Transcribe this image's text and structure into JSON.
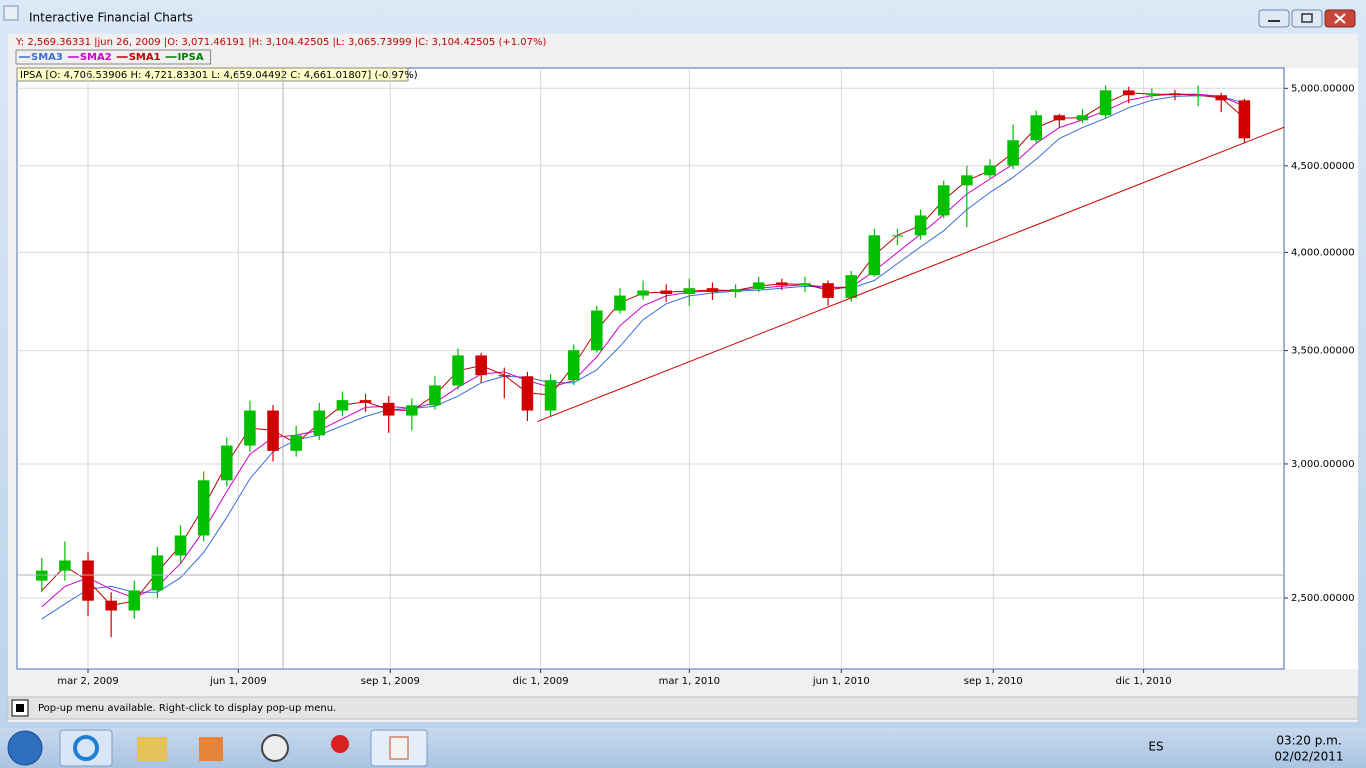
{
  "window": {
    "title": "Interactive Financial Charts"
  },
  "header": {
    "crosshair_info": "Y: 2,569.36331 |jun 26, 2009 |O: 3,071.46191 |H: 3,104.42505 |L: 3,065.73999 |C: 3,104.42505 (+1.07%)",
    "ohlc_info": "IPSA [O: 4,706.53906  H: 4,721.83301  L: 4,659.04492  C: 4,661.01807] (-0.97%)"
  },
  "chart_data": {
    "type": "candlestick",
    "name": "IPSA",
    "color": "#008000",
    "up_color": "#00c000",
    "down_color": "#d00000",
    "log_scale": true,
    "grid": true,
    "x": [
      "2009-02-02",
      "2009-02-16",
      "2009-03-02",
      "2009-03-16",
      "2009-03-30",
      "2009-04-13",
      "2009-04-27",
      "2009-05-11",
      "2009-05-25",
      "2009-06-08",
      "2009-06-22",
      "2009-07-06",
      "2009-07-20",
      "2009-08-03",
      "2009-08-17",
      "2009-08-31",
      "2009-09-14",
      "2009-09-28",
      "2009-10-12",
      "2009-10-26",
      "2009-11-09",
      "2009-11-23",
      "2009-12-07",
      "2009-12-21",
      "2010-01-04",
      "2010-01-18",
      "2010-02-01",
      "2010-02-15",
      "2010-03-01",
      "2010-03-15",
      "2010-03-29",
      "2010-04-12",
      "2010-04-26",
      "2010-05-10",
      "2010-05-24",
      "2010-06-07",
      "2010-06-21",
      "2010-07-05",
      "2010-07-19",
      "2010-08-02",
      "2010-08-16",
      "2010-08-30",
      "2010-09-13",
      "2010-09-27",
      "2010-10-11",
      "2010-10-25",
      "2010-11-08",
      "2010-11-22",
      "2010-12-06",
      "2010-12-20",
      "2011-01-03",
      "2011-01-17",
      "2011-01-31"
    ],
    "open": [
      2560,
      2595,
      2631,
      2491,
      2458,
      2526,
      2649,
      2722,
      2934,
      3076,
      3226,
      3054,
      3119,
      3226,
      3272,
      3260,
      3204,
      3249,
      3338,
      3477,
      3385,
      3380,
      3226,
      3362,
      3502,
      3696,
      3772,
      3798,
      3780,
      3810,
      3790,
      3805,
      3840,
      3825,
      3836,
      3760,
      3878,
      4094,
      4094,
      4206,
      4382,
      4442,
      4502,
      4659,
      4820,
      4787,
      4820,
      4986,
      4953,
      4966,
      4953,
      4953,
      4919
    ],
    "high": [
      2640,
      2700,
      2660,
      2520,
      2560,
      2680,
      2760,
      2970,
      3110,
      3270,
      3250,
      3160,
      3260,
      3310,
      3300,
      3290,
      3280,
      3380,
      3510,
      3490,
      3420,
      3400,
      3390,
      3530,
      3720,
      3810,
      3850,
      3830,
      3860,
      3840,
      3830,
      3870,
      3860,
      3870,
      3850,
      3900,
      4130,
      4130,
      4240,
      4410,
      4500,
      4540,
      4760,
      4850,
      4830,
      4860,
      5020,
      5010,
      5000,
      4990,
      5020,
      4970,
      4930
    ],
    "low": [
      2520,
      2560,
      2440,
      2370,
      2430,
      2500,
      2620,
      2700,
      2910,
      3050,
      3010,
      3030,
      3100,
      3200,
      3220,
      3130,
      3140,
      3230,
      3320,
      3350,
      3280,
      3180,
      3200,
      3340,
      3490,
      3680,
      3750,
      3740,
      3720,
      3750,
      3760,
      3790,
      3800,
      3790,
      3720,
      3740,
      3870,
      4040,
      4070,
      4190,
      4140,
      4420,
      4480,
      4640,
      4740,
      4770,
      4800,
      4900,
      4930,
      4920,
      4880,
      4840,
      4640
    ],
    "close": [
      2595,
      2631,
      2491,
      2458,
      2526,
      2649,
      2722,
      2934,
      3076,
      3226,
      3054,
      3119,
      3226,
      3272,
      3260,
      3204,
      3249,
      3338,
      3477,
      3385,
      3380,
      3226,
      3362,
      3502,
      3696,
      3772,
      3798,
      3780,
      3810,
      3790,
      3805,
      3840,
      3825,
      3836,
      3760,
      3878,
      4094,
      4094,
      4206,
      4382,
      4442,
      4502,
      4659,
      4820,
      4787,
      4820,
      4986,
      4953,
      4966,
      4953,
      4953,
      4919,
      4671
    ],
    "series": [
      {
        "name": "SMA3",
        "color": "#3b6fd6",
        "values": [
          2430,
          2480,
          2530,
          2540,
          2520,
          2520,
          2570,
          2660,
          2790,
          2940,
          3050,
          3100,
          3120,
          3160,
          3200,
          3230,
          3235,
          3245,
          3290,
          3350,
          3380,
          3375,
          3350,
          3350,
          3410,
          3520,
          3650,
          3730,
          3770,
          3785,
          3795,
          3800,
          3810,
          3820,
          3815,
          3810,
          3850,
          3940,
          4030,
          4120,
          4240,
          4340,
          4430,
          4540,
          4670,
          4740,
          4800,
          4870,
          4920,
          4945,
          4950,
          4945,
          4900
        ]
      },
      {
        "name": "SMA2",
        "color": "#d000d0",
        "values": [
          2470,
          2540,
          2570,
          2530,
          2500,
          2540,
          2620,
          2740,
          2890,
          3040,
          3110,
          3120,
          3140,
          3190,
          3240,
          3245,
          3235,
          3260,
          3330,
          3390,
          3400,
          3360,
          3330,
          3360,
          3470,
          3620,
          3720,
          3770,
          3790,
          3795,
          3798,
          3810,
          3820,
          3828,
          3815,
          3815,
          3900,
          4000,
          4100,
          4210,
          4330,
          4420,
          4510,
          4640,
          4740,
          4790,
          4850,
          4920,
          4950,
          4960,
          4960,
          4945,
          4880
        ]
      },
      {
        "name": "SMA1",
        "color": "#c00000",
        "values": [
          2525,
          2610,
          2560,
          2475,
          2490,
          2590,
          2685,
          2830,
          3000,
          3150,
          3140,
          3085,
          3170,
          3250,
          3265,
          3230,
          3225,
          3295,
          3405,
          3430,
          3385,
          3305,
          3295,
          3430,
          3600,
          3735,
          3785,
          3790,
          3795,
          3800,
          3798,
          3822,
          3832,
          3830,
          3800,
          3820,
          3985,
          4094,
          4150,
          4295,
          4410,
          4470,
          4580,
          4740,
          4800,
          4805,
          4900,
          4970,
          4960,
          4960,
          4953,
          4936,
          4800
        ]
      }
    ],
    "trendline": {
      "color": "#cc0000",
      "x": [
        "2009-11-29",
        "2011-02-24"
      ],
      "values": [
        3178,
        4742
      ]
    },
    "xlim": [
      "2009-01-18",
      "2011-02-24"
    ],
    "xticks": [
      {
        "value": "2009-03-02",
        "label": "mar 2, 2009"
      },
      {
        "value": "2009-06-01",
        "label": "jun 1, 2009"
      },
      {
        "value": "2009-09-01",
        "label": "sep 1, 2009"
      },
      {
        "value": "2009-12-01",
        "label": "dic 1, 2009"
      },
      {
        "value": "2010-03-01",
        "label": "mar 1, 2010"
      },
      {
        "value": "2010-06-01",
        "label": "jun 1, 2010"
      },
      {
        "value": "2010-09-01",
        "label": "sep 1, 2010"
      },
      {
        "value": "2010-12-01",
        "label": "dic 1, 2010"
      }
    ],
    "ylim": [
      2270,
      5140
    ],
    "yticks": [
      {
        "value": 2500,
        "label": "2,500.00000"
      },
      {
        "value": 3000,
        "label": "3,000.00000"
      },
      {
        "value": 3500,
        "label": "3,500.00000"
      },
      {
        "value": 4000,
        "label": "4,000.00000"
      },
      {
        "value": 4500,
        "label": "4,500.00000"
      },
      {
        "value": 5000,
        "label": "5,000.00000"
      }
    ]
  },
  "status_bar": {
    "text": "Pop-up menu available. Right-click to display pop-up menu."
  },
  "taskbar": {
    "language": "ES",
    "time": "03:20 p.m.",
    "date": "02/02/2011"
  }
}
